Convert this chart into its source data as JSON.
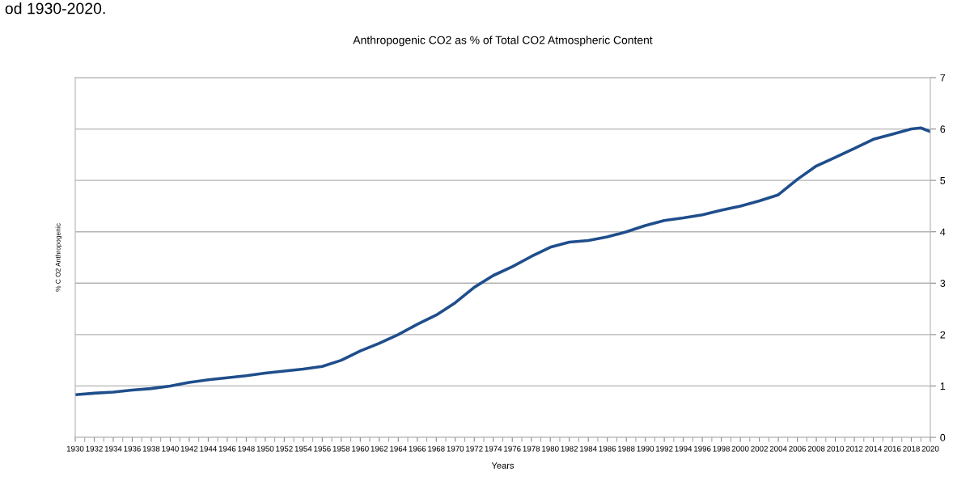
{
  "chart_data": {
    "type": "line",
    "title": "Anthropogenic CO2 as % of Total CO2 Atmospheric Content",
    "xlabel": "Years",
    "ylabel": "% C O2 Anthropogenic",
    "annotations": [
      "od 1930-2020."
    ],
    "x": [
      1930,
      1932,
      1934,
      1936,
      1938,
      1940,
      1942,
      1944,
      1946,
      1948,
      1950,
      1952,
      1954,
      1956,
      1958,
      1960,
      1962,
      1964,
      1966,
      1968,
      1970,
      1972,
      1974,
      1976,
      1978,
      1980,
      1982,
      1984,
      1986,
      1988,
      1990,
      1992,
      1994,
      1996,
      1998,
      2000,
      2002,
      2004,
      2006,
      2008,
      2010,
      2012,
      2014,
      2016,
      2018,
      2019,
      2020
    ],
    "series": [
      {
        "color": "#1f4e8c",
        "values": [
          0.83,
          0.86,
          0.88,
          0.92,
          0.95,
          1.0,
          1.07,
          1.12,
          1.16,
          1.2,
          1.25,
          1.29,
          1.33,
          1.38,
          1.5,
          1.68,
          1.83,
          2.0,
          2.2,
          2.38,
          2.62,
          2.92,
          3.15,
          3.32,
          3.52,
          3.7,
          3.8,
          3.83,
          3.9,
          4.0,
          4.12,
          4.22,
          4.27,
          4.33,
          4.42,
          4.5,
          4.6,
          4.72,
          5.02,
          5.28,
          5.45,
          5.62,
          5.8,
          5.9,
          6.0,
          6.02,
          5.95
        ]
      }
    ],
    "xlim": [
      1930,
      2020
    ],
    "xticks": [
      1930,
      1932,
      1934,
      1936,
      1938,
      1940,
      1942,
      1944,
      1946,
      1948,
      1950,
      1952,
      1954,
      1956,
      1958,
      1960,
      1962,
      1964,
      1966,
      1968,
      1970,
      1972,
      1974,
      1976,
      1978,
      1980,
      1982,
      1984,
      1986,
      1988,
      1990,
      1992,
      1994,
      1996,
      1998,
      2000,
      2002,
      2004,
      2006,
      2008,
      2010,
      2012,
      2014,
      2016,
      2018,
      2020
    ],
    "ylim": [
      0,
      7
    ],
    "yticks": [
      0,
      1,
      2,
      3,
      4,
      5,
      6,
      7
    ],
    "grid": "y",
    "legend": false,
    "marker": "none",
    "line_style": "solid"
  }
}
